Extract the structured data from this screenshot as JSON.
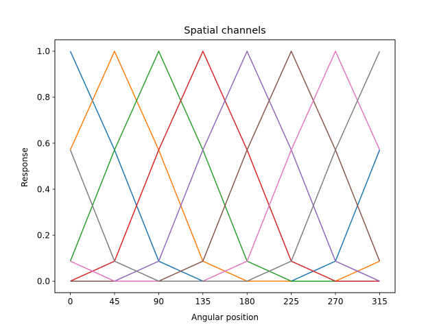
{
  "chart_data": {
    "type": "line",
    "title": "Spatial channels",
    "xlabel": "Angular position",
    "ylabel": "Response",
    "x": [
      0,
      45,
      90,
      135,
      180,
      225,
      270,
      315
    ],
    "xticks": [
      "0",
      "45",
      "90",
      "135",
      "180",
      "225",
      "270",
      "315"
    ],
    "yticks": [
      "0.0",
      "0.2",
      "0.4",
      "0.6",
      "0.8",
      "1.0"
    ],
    "ytick_values": [
      0.0,
      0.2,
      0.4,
      0.6,
      0.8,
      1.0
    ],
    "xlim": [
      -15.75,
      330.75
    ],
    "ylim": [
      -0.05,
      1.05
    ],
    "grid": false,
    "series": [
      {
        "color": "#1f77b4",
        "values": [
          1.0,
          0.571,
          0.087,
          0.0,
          0.0,
          0.0,
          0.087,
          0.571
        ]
      },
      {
        "color": "#ff7f0e",
        "values": [
          0.571,
          1.0,
          0.571,
          0.087,
          0.0,
          0.0,
          0.0,
          0.087
        ]
      },
      {
        "color": "#2ca02c",
        "values": [
          0.087,
          0.571,
          1.0,
          0.571,
          0.087,
          0.0,
          0.0,
          0.0
        ]
      },
      {
        "color": "#d62728",
        "values": [
          0.0,
          0.087,
          0.571,
          1.0,
          0.571,
          0.087,
          0.0,
          0.0
        ]
      },
      {
        "color": "#9467bd",
        "values": [
          0.0,
          0.0,
          0.087,
          0.571,
          1.0,
          0.571,
          0.087,
          0.0
        ]
      },
      {
        "color": "#8c564b",
        "values": [
          0.0,
          0.0,
          0.0,
          0.087,
          0.571,
          1.0,
          0.571,
          0.087
        ]
      },
      {
        "color": "#e377c2",
        "values": [
          0.087,
          0.0,
          0.0,
          0.0,
          0.087,
          0.571,
          1.0,
          0.571
        ]
      },
      {
        "color": "#7f7f7f",
        "values": [
          0.571,
          0.087,
          0.0,
          0.0,
          0.0,
          0.087,
          0.571,
          1.0
        ]
      }
    ]
  }
}
